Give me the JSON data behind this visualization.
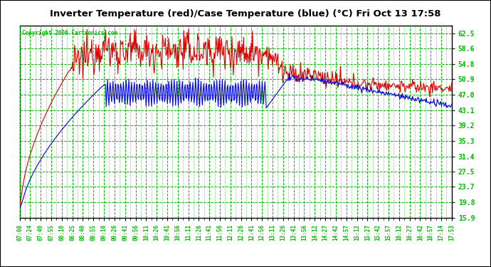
{
  "title": "Inverter Temperature (red)/Case Temperature (blue) (°C) Fri Oct 13 17:58",
  "copyright": "Copyright 2006 Cartronics.com",
  "plot_bg_color": "#ffffff",
  "fig_bg_color": "#ffffff",
  "grid_color": "#00bb00",
  "title_color": "#000000",
  "red_color": "#dd0000",
  "blue_color": "#0000dd",
  "yticks": [
    15.9,
    19.8,
    23.7,
    27.5,
    31.4,
    35.3,
    39.2,
    43.1,
    47.0,
    50.9,
    54.8,
    58.6,
    62.5
  ],
  "ymin": 15.9,
  "ymax": 64.5,
  "xtick_labels": [
    "07:08",
    "07:24",
    "07:40",
    "07:55",
    "08:10",
    "08:25",
    "08:40",
    "08:55",
    "09:10",
    "09:26",
    "09:41",
    "09:56",
    "10:11",
    "10:26",
    "10:41",
    "10:56",
    "11:11",
    "11:26",
    "11:41",
    "11:56",
    "12:11",
    "12:26",
    "12:41",
    "12:56",
    "13:11",
    "13:26",
    "13:41",
    "13:56",
    "14:12",
    "14:27",
    "14:42",
    "14:57",
    "15:12",
    "15:27",
    "15:42",
    "15:57",
    "16:12",
    "16:27",
    "16:42",
    "16:57",
    "17:14",
    "17:53"
  ],
  "n_points": 630
}
